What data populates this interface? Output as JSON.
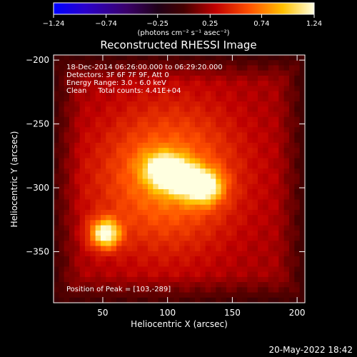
{
  "chart_data": {
    "type": "heatmap",
    "title": "Reconstructed RHESSI Image",
    "xlabel": "Heliocentric X (arcsec)",
    "ylabel": "Heliocentric Y (arcsec)",
    "xlim": [
      12,
      206
    ],
    "ylim": [
      -390,
      -196
    ],
    "x_ticks": [
      50,
      100,
      150,
      200
    ],
    "y_ticks": [
      -200,
      -250,
      -300,
      -350
    ],
    "colorbar": {
      "range": [
        -1.24,
        1.24
      ],
      "ticks": [
        "-1.24",
        "-0.74",
        "-0.25",
        "0.25",
        "0.74",
        "1.24"
      ],
      "tick_values": [
        -1.24,
        -0.74,
        -0.25,
        0.25,
        0.74,
        1.24
      ],
      "unit_label": "(photons cm⁻² s⁻¹ asec⁻²)"
    },
    "annotations": [
      "18-Dec-2014 06:26:00.000 to 06:29:20.000",
      "Detectors: 3F 6F 7F 9F, Att 0",
      "Energy Range: 3.0 - 6.0 keV",
      "Clean     Total counts: 4.41E+04"
    ],
    "peak_text": "Position of Peak = [103,-289]",
    "sources": [
      {
        "x": 103,
        "y": -289,
        "amplitude": 1.24,
        "sigma_x": 13,
        "sigma_y": 9,
        "tilt_deg": -20
      },
      {
        "x": 128,
        "y": -299,
        "amplitude": 0.9,
        "sigma_x": 10,
        "sigma_y": 9,
        "tilt_deg": 0
      },
      {
        "x": 52,
        "y": -336,
        "amplitude": 1.0,
        "sigma_x": 8,
        "sigma_y": 8,
        "tilt_deg": 0
      },
      {
        "x": 100,
        "y": -292,
        "amplitude": 0.55,
        "sigma_x": 38,
        "sigma_y": 40,
        "tilt_deg": -25
      }
    ]
  },
  "footer": {
    "timestamp": "20-May-2022 18:42"
  },
  "colors": {
    "background": "#000000",
    "foreground": "#ffffff"
  }
}
